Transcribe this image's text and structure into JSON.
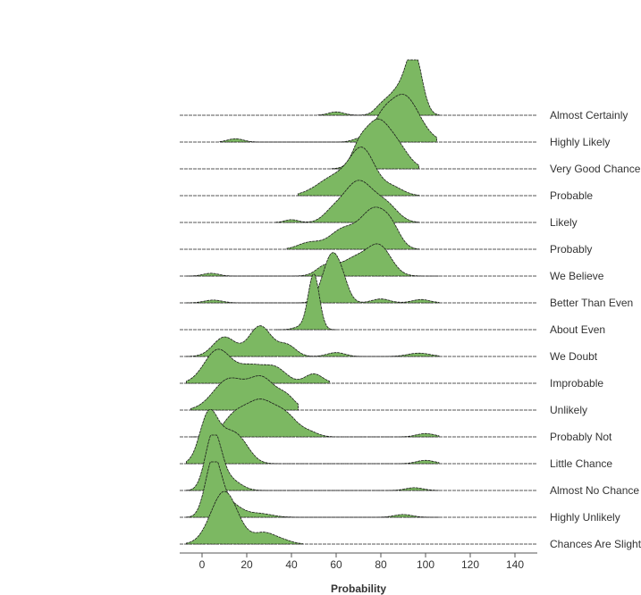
{
  "chart_data": {
    "type": "ridgeline",
    "title": "",
    "xlabel": "Probability",
    "ylabel": "",
    "xlim": [
      -10,
      150
    ],
    "x_ticks": [
      0,
      20,
      40,
      60,
      80,
      100,
      120,
      140
    ],
    "fill_color": "#7cb862",
    "line_color": "#1a1a1a",
    "baseline_color": "#555555",
    "grid": false,
    "series": [
      {
        "name": "Almost Certainly",
        "peaks": [
          [
            95,
            1.0,
            3.5
          ],
          [
            88,
            0.45,
            5
          ],
          [
            80,
            0.1,
            3
          ],
          [
            60,
            0.06,
            3.5
          ]
        ],
        "range": [
          52,
          106
        ]
      },
      {
        "name": "Highly Likely",
        "peaks": [
          [
            90,
            0.85,
            7
          ],
          [
            80,
            0.25,
            4
          ],
          [
            70,
            0.05,
            3
          ],
          [
            15,
            0.06,
            3.5
          ]
        ],
        "range": [
          8,
          105
        ]
      },
      {
        "name": "Very Good Chance",
        "peaks": [
          [
            78,
            0.85,
            6
          ],
          [
            88,
            0.3,
            5
          ],
          [
            70,
            0.2,
            3
          ]
        ],
        "range": [
          58,
          97
        ]
      },
      {
        "name": "Probable",
        "peaks": [
          [
            72,
            0.75,
            5.5
          ],
          [
            60,
            0.35,
            8
          ],
          [
            85,
            0.15,
            5
          ]
        ],
        "range": [
          43,
          97
        ]
      },
      {
        "name": "Likely",
        "peaks": [
          [
            70,
            0.75,
            7
          ],
          [
            83,
            0.25,
            5
          ],
          [
            58,
            0.12,
            4
          ],
          [
            40,
            0.05,
            3
          ]
        ],
        "range": [
          33,
          97
        ]
      },
      {
        "name": "Probably",
        "peaks": [
          [
            77,
            0.7,
            6
          ],
          [
            63,
            0.35,
            6
          ],
          [
            48,
            0.12,
            5
          ],
          [
            85,
            0.25,
            4
          ]
        ],
        "range": [
          38,
          97
        ]
      },
      {
        "name": "We Believe",
        "peaks": [
          [
            80,
            0.4,
            5
          ],
          [
            70,
            0.35,
            8
          ],
          [
            55,
            0.15,
            4
          ],
          [
            4,
            0.05,
            3.5
          ]
        ],
        "range": [
          -7,
          106
        ]
      },
      {
        "name": "Better Than Even",
        "peaks": [
          [
            58,
            0.85,
            4
          ],
          [
            63,
            0.2,
            3
          ],
          [
            80,
            0.07,
            4
          ],
          [
            98,
            0.06,
            4
          ],
          [
            5,
            0.05,
            4
          ]
        ],
        "range": [
          -7,
          106
        ]
      },
      {
        "name": "About Even",
        "peaks": [
          [
            50,
            1.0,
            2.5
          ],
          [
            44,
            0.05,
            3
          ]
        ],
        "range": [
          33,
          60
        ]
      },
      {
        "name": "We Doubt",
        "peaks": [
          [
            26,
            0.55,
            5
          ],
          [
            10,
            0.35,
            5
          ],
          [
            38,
            0.2,
            4
          ],
          [
            60,
            0.07,
            4
          ],
          [
            97,
            0.06,
            5
          ]
        ],
        "range": [
          -7,
          106
        ]
      },
      {
        "name": "Improbable",
        "peaks": [
          [
            7,
            0.6,
            6
          ],
          [
            22,
            0.3,
            6
          ],
          [
            33,
            0.25,
            5
          ],
          [
            50,
            0.17,
            4
          ]
        ],
        "range": [
          -7,
          57
        ]
      },
      {
        "name": "Unlikely",
        "peaks": [
          [
            12,
            0.55,
            7
          ],
          [
            27,
            0.55,
            6
          ],
          [
            38,
            0.2,
            4
          ]
        ],
        "range": [
          -5,
          43
        ]
      },
      {
        "name": "Probably Not",
        "peaks": [
          [
            26,
            0.65,
            7
          ],
          [
            14,
            0.3,
            5
          ],
          [
            38,
            0.3,
            5
          ],
          [
            48,
            0.08,
            4
          ],
          [
            100,
            0.06,
            4
          ]
        ],
        "range": [
          -5,
          106
        ]
      },
      {
        "name": "Little Chance",
        "peaks": [
          [
            3,
            0.9,
            4
          ],
          [
            16,
            0.45,
            5
          ],
          [
            10,
            0.25,
            4
          ],
          [
            100,
            0.06,
            4
          ]
        ],
        "range": [
          -7,
          106
        ]
      },
      {
        "name": "Almost No Chance",
        "peaks": [
          [
            5,
            1.0,
            3.5
          ],
          [
            12,
            0.2,
            5
          ],
          [
            95,
            0.05,
            4
          ]
        ],
        "range": [
          -7,
          106
        ]
      },
      {
        "name": "Highly Unlikely",
        "peaks": [
          [
            5,
            1.0,
            3.5
          ],
          [
            12,
            0.25,
            5
          ],
          [
            25,
            0.07,
            6
          ],
          [
            90,
            0.05,
            4
          ]
        ],
        "range": [
          -7,
          106
        ]
      },
      {
        "name": "Chances Are Slight",
        "peaks": [
          [
            10,
            0.95,
            6
          ],
          [
            28,
            0.2,
            5
          ],
          [
            37,
            0.05,
            4
          ]
        ],
        "range": [
          -7,
          45
        ]
      }
    ]
  }
}
